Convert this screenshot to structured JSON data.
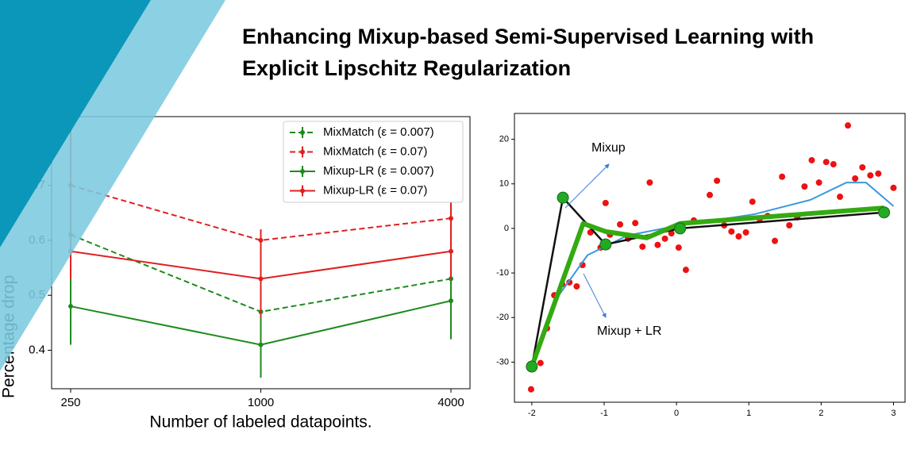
{
  "slide": {
    "title_lines": [
      "Enhancing Mixup-based Semi-Supervised Learning with",
      "Explicit Lipschitz Regularization"
    ]
  },
  "chart_data": [
    {
      "type": "line",
      "xlabel": "Number of labeled datapoints.",
      "ylabel": "Percentage drop",
      "categories": [
        "250",
        "1000",
        "4000"
      ],
      "ylim": [
        0.33,
        0.825
      ],
      "yticks": [
        0.4,
        0.5,
        0.6,
        0.7
      ],
      "legend": "upper right",
      "grid": false,
      "series": [
        {
          "name": "MixMatch (ε = 0.007)",
          "color": "#1e8a1e",
          "dashed": true,
          "values": [
            0.61,
            0.47,
            0.53
          ],
          "errors": [
            0.05,
            0.04,
            0.04
          ]
        },
        {
          "name": "MixMatch (ε = 0.07)",
          "color": "#e02020",
          "dashed": true,
          "values": [
            0.7,
            0.6,
            0.64
          ],
          "errors": [
            0.12,
            0.02,
            0.03
          ]
        },
        {
          "name": "Mixup-LR (ε = 0.007)",
          "color": "#1e8a1e",
          "dashed": false,
          "values": [
            0.48,
            0.41,
            0.49
          ],
          "errors": [
            0.07,
            0.06,
            0.07
          ]
        },
        {
          "name": "Mixup-LR (ε = 0.07)",
          "color": "#e02020",
          "dashed": false,
          "values": [
            0.58,
            0.53,
            0.58
          ],
          "errors": [
            0.05,
            0.07,
            0.05
          ]
        }
      ]
    },
    {
      "type": "scatter",
      "xlim": [
        -2.24,
        3.16
      ],
      "ylim": [
        -39,
        25.8
      ],
      "xticks": [
        -2,
        -1,
        0,
        1,
        2,
        3
      ],
      "yticks": [
        20,
        10,
        0,
        -10,
        -20,
        -30
      ],
      "grid": false,
      "points": {
        "color": "#ee1111",
        "x": [
          -2.01,
          -1.88,
          -1.79,
          -1.69,
          -1.58,
          -1.48,
          -1.38,
          -1.3,
          -1.19,
          -1.05,
          -0.98,
          -0.92,
          -0.78,
          -0.67,
          -0.57,
          -0.47,
          -0.37,
          -0.26,
          -0.16,
          -0.07,
          0.03,
          0.13,
          0.24,
          0.46,
          0.56,
          0.66,
          0.76,
          0.86,
          0.96,
          1.05,
          1.15,
          1.26,
          1.36,
          1.46,
          1.56,
          1.67,
          1.77,
          1.87,
          1.97,
          2.07,
          2.17,
          2.26,
          2.37,
          2.47,
          2.57,
          2.68,
          2.79,
          3.0
        ],
        "y": [
          -36.1,
          -30.2,
          -22.4,
          -15,
          -12.5,
          -12.1,
          -13,
          -8.2,
          -0.9,
          -4.3,
          5.7,
          -1.4,
          0.9,
          -2.3,
          1.2,
          -4.1,
          10.3,
          -3.7,
          -2.3,
          -1.1,
          -4.3,
          -9.3,
          1.8,
          7.5,
          10.7,
          0.7,
          -0.7,
          -1.8,
          -0.9,
          6.0,
          2.1,
          2.8,
          -2.8,
          11.6,
          0.7,
          2.5,
          9.4,
          15.3,
          10.3,
          14.9,
          14.4,
          7.1,
          23.1,
          11.2,
          13.7,
          11.9,
          12.3,
          9.1
        ]
      },
      "curve": {
        "color": "#3a9ad9",
        "x": [
          -2,
          -1.67,
          -1.23,
          -0.68,
          -0.02,
          1.08,
          1.85,
          2.35,
          2.62,
          3.0
        ],
        "y": [
          -31,
          -16,
          -6,
          -1.6,
          0.5,
          3.2,
          6.4,
          10.3,
          10.3,
          5
        ]
      },
      "lines": [
        {
          "color": "#111111",
          "width": 2.5,
          "x": [
            -2,
            -1.57,
            -0.98,
            0.05,
            2.87
          ],
          "y": [
            -31,
            6.9,
            -3.6,
            0,
            3.6
          ],
          "marker_color": "#22aa22"
        },
        {
          "color": "#33aa11",
          "width": 6,
          "x": [
            -2,
            -1.29,
            -0.98,
            -0.41,
            0.05,
            2.87
          ],
          "y": [
            -31,
            1.1,
            -0.7,
            -2.1,
            1.1,
            4.6
          ]
        }
      ],
      "annotations": [
        {
          "text": "Mixup"
        },
        {
          "text": "Mixup + LR"
        }
      ]
    }
  ]
}
